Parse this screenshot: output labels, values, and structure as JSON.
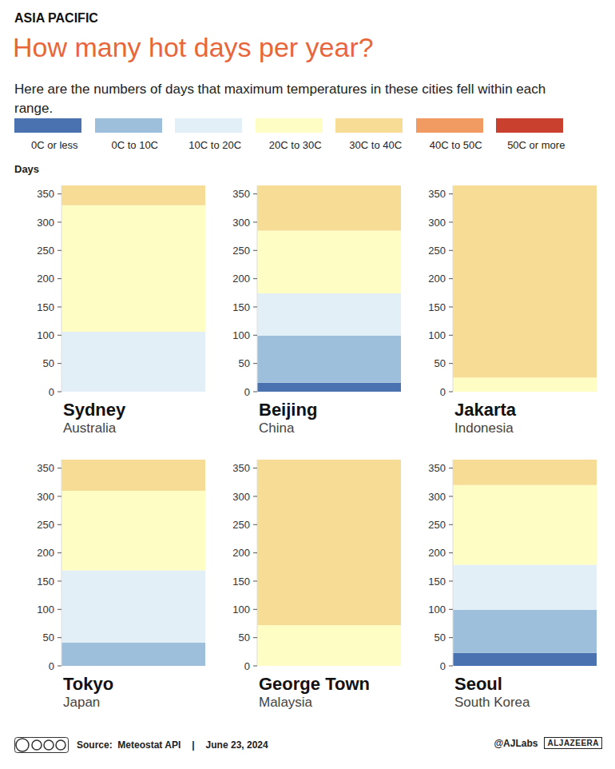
{
  "chart_data": {
    "type": "bar",
    "header": "ASIA PACIFIC",
    "title": "How many hot days per year?",
    "subtitle": "Here are the numbers of days that maximum temperatures in these cities fell within each range.",
    "y_label": "Days",
    "categories": [
      "Sydney",
      "Beijing",
      "Jakarta",
      "Tokyo",
      "George Town",
      "Seoul"
    ],
    "category_subtitles": [
      "Australia",
      "China",
      "Indonesia",
      "Japan",
      "Malaysia",
      "South Korea"
    ],
    "series": [
      {
        "name": "0C or less",
        "color": "#4a72b0",
        "values": [
          0,
          16,
          0,
          0,
          0,
          23
        ]
      },
      {
        "name": "0C to 10C",
        "color": "#9dbfdb",
        "values": [
          0,
          83,
          0,
          41,
          0,
          76
        ]
      },
      {
        "name": "10C to 20C",
        "color": "#e3eff6",
        "values": [
          106,
          75,
          0,
          128,
          0,
          80
        ]
      },
      {
        "name": "20C to 30C",
        "color": "#fefdc4",
        "values": [
          224,
          111,
          25,
          141,
          72,
          141
        ]
      },
      {
        "name": "30C to 40C",
        "color": "#f7dc95",
        "values": [
          35,
          80,
          340,
          55,
          293,
          45
        ]
      },
      {
        "name": "40C to 50C",
        "color": "#f19a62",
        "values": [
          0,
          0,
          0,
          0,
          0,
          0
        ]
      },
      {
        "name": "50C or more",
        "color": "#c9402f",
        "values": [
          0,
          0,
          0,
          0,
          0,
          0
        ]
      }
    ],
    "ylim": [
      0,
      365
    ],
    "yticks": [
      0,
      50,
      100,
      150,
      200,
      250,
      300,
      350
    ],
    "stacked": true,
    "grid": false,
    "data_labels": false,
    "legend": "top",
    "tick_labels": "y",
    "source": "Source:  Meteostat API",
    "separator": "|",
    "date": "June 23, 2024",
    "credit": "@AJLabs",
    "logo": "ALJAZEERA"
  }
}
